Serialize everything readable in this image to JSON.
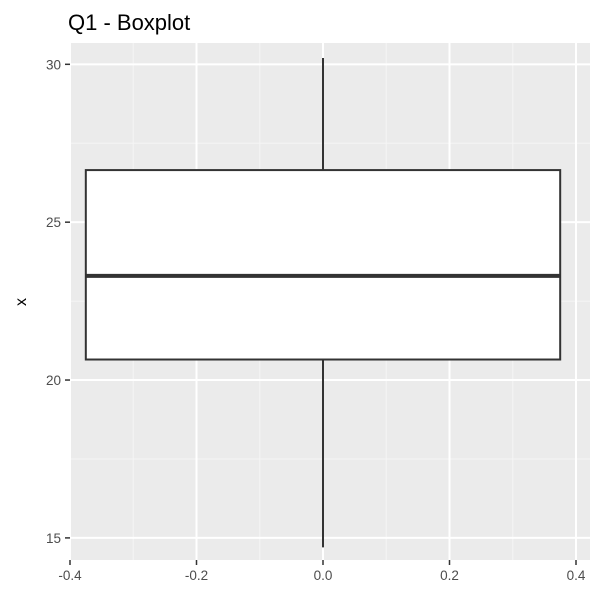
{
  "chart_data": {
    "type": "boxplot",
    "title": "Q1 - Boxplot",
    "xlabel": "",
    "ylabel": "x",
    "xlim": [
      -0.4,
      0.4
    ],
    "ylim": [
      14.3,
      30.2
    ],
    "x_ticks": [
      -0.4,
      -0.2,
      0.0,
      0.2,
      0.4
    ],
    "x_tick_labels": [
      "-0.4",
      "-0.2",
      "0.0",
      "0.2",
      "0.4"
    ],
    "y_ticks": [
      15,
      20,
      25,
      30
    ],
    "y_tick_labels": [
      "15",
      "20",
      "25",
      "30"
    ],
    "grid": true,
    "box": {
      "x_center": 0.0,
      "x_left": -0.375,
      "x_right": 0.375,
      "whisker_low": 14.7,
      "q1": 20.65,
      "median": 23.3,
      "q3": 26.65,
      "whisker_high": 30.2
    },
    "colors": {
      "panel_background": "#ebebeb",
      "grid_major": "#ffffff",
      "grid_minor": "#f5f5f5",
      "box_fill": "#ffffff",
      "box_outline": "#333333",
      "tick_mark": "#333333",
      "tick_label": "#4d4d4d"
    }
  }
}
